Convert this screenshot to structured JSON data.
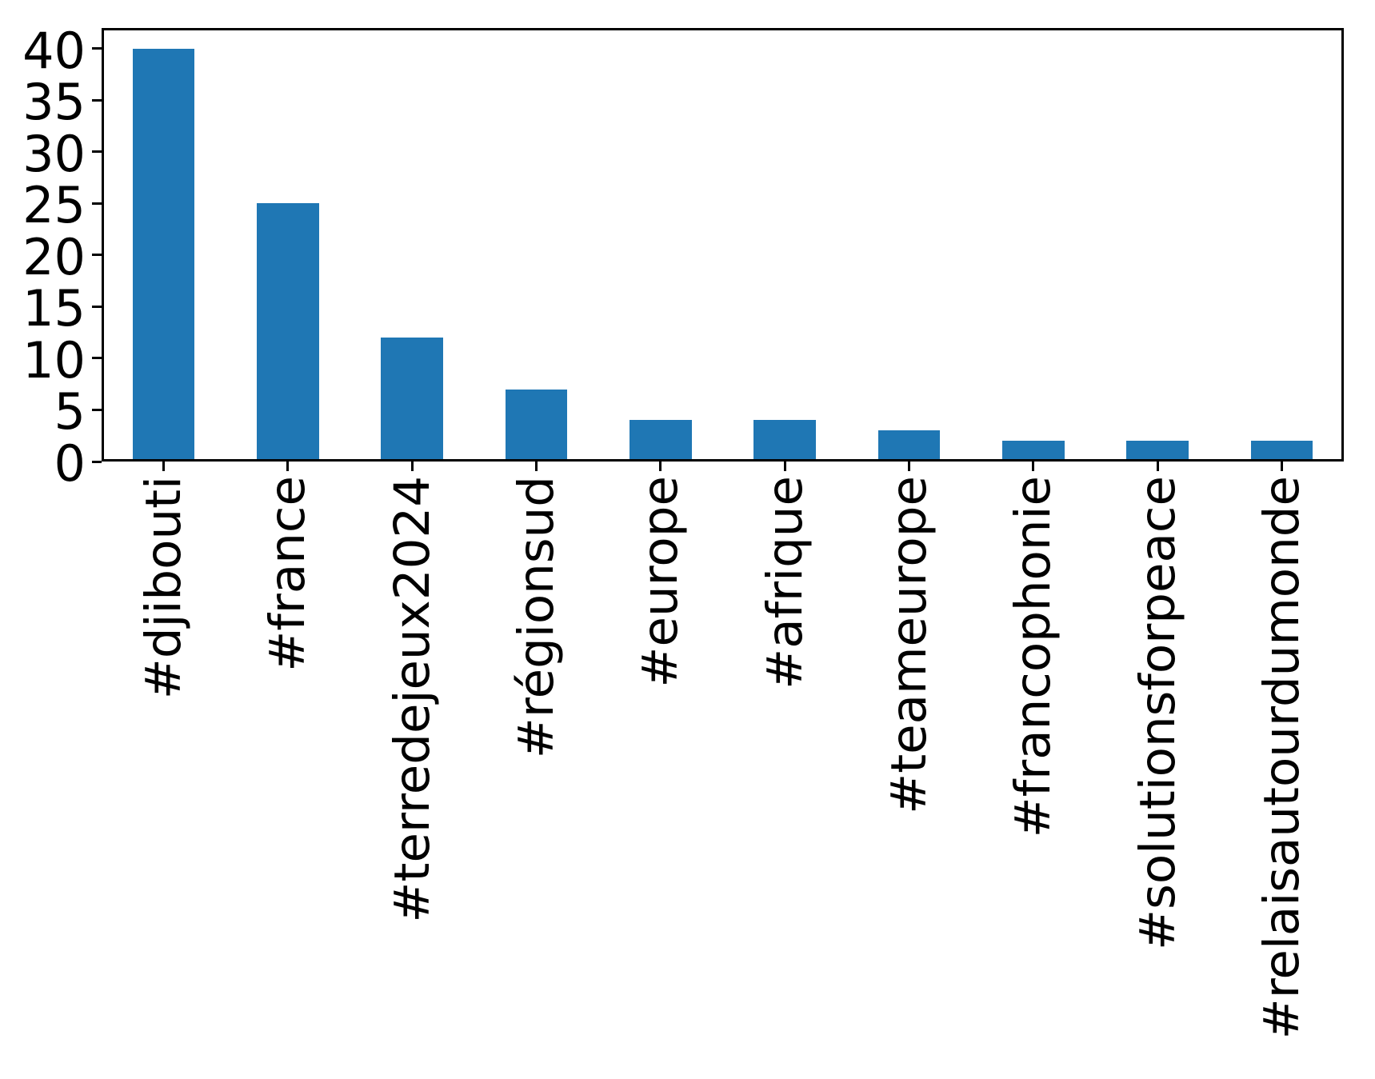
{
  "chart_data": {
    "type": "bar",
    "title": "",
    "xlabel": "",
    "ylabel": "",
    "categories": [
      "#djibouti",
      "#france",
      "#terredejeux2024",
      "#régionsud",
      "#europe",
      "#afrique",
      "#teameurope",
      "#francophonie",
      "#solutionsforpeace",
      "#relaisautourdumonde"
    ],
    "values": [
      40,
      25,
      12,
      7,
      4,
      4,
      3,
      2,
      2,
      2
    ],
    "yticks": [
      0,
      5,
      10,
      15,
      20,
      25,
      30,
      35,
      40
    ],
    "ylim": [
      0,
      42
    ],
    "grid": false,
    "legend": null,
    "bar_color": "#1f77b4",
    "axis_color": "#000000"
  }
}
